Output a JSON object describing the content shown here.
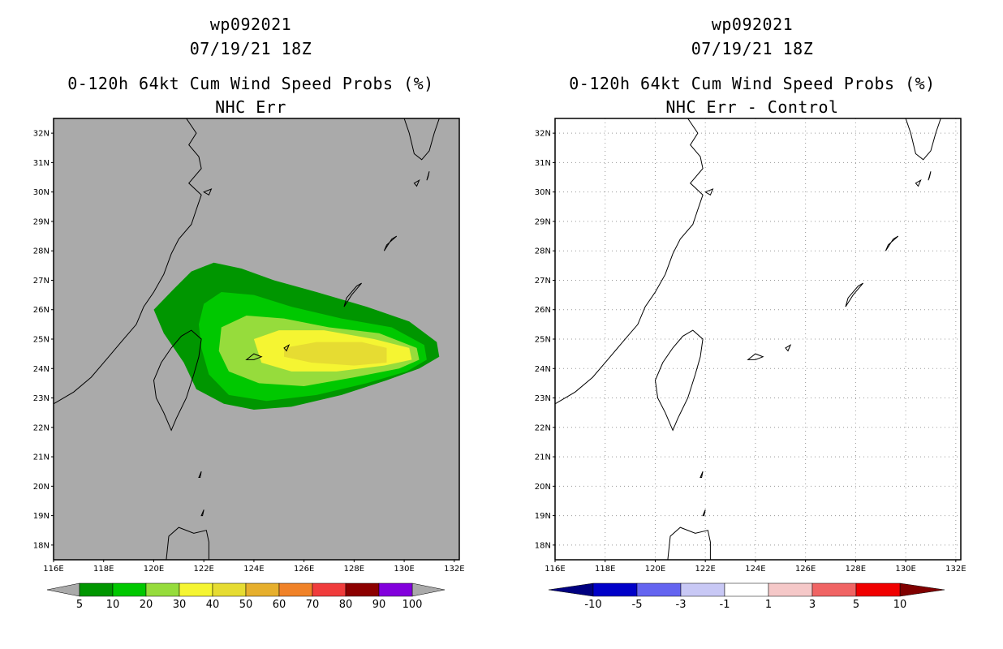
{
  "panels": {
    "left": {
      "storm_id": "wp092021",
      "datetime": "07/19/21 18Z",
      "product": "0-120h 64kt Cum Wind Speed Probs (%)",
      "subtitle": "NHC Err",
      "colorbar": {
        "labels": [
          "5",
          "10",
          "20",
          "30",
          "40",
          "50",
          "60",
          "70",
          "80",
          "90",
          "100"
        ],
        "colors": [
          "#009600",
          "#00c800",
          "#96dc3c",
          "#f5f532",
          "#e6dc32",
          "#e6af2d",
          "#f08228",
          "#f03c3c",
          "#8c0000",
          "#8200dc"
        ]
      }
    },
    "right": {
      "storm_id": "wp092021",
      "datetime": "07/19/21 18Z",
      "product": "0-120h 64kt Cum Wind Speed Probs (%)",
      "subtitle": "NHC Err - Control",
      "colorbar": {
        "labels": [
          "-10",
          "-5",
          "-3",
          "-1",
          "1",
          "3",
          "5",
          "10"
        ],
        "colors": [
          "#0000c8",
          "#6464f0",
          "#c8c8f5",
          "#ffffff",
          "#f5c8c8",
          "#f06464",
          "#f00000"
        ],
        "end_colors": [
          "#000080",
          "#800000"
        ]
      }
    }
  },
  "axes": {
    "lon_labels": [
      "116E",
      "118E",
      "120E",
      "122E",
      "124E",
      "126E",
      "128E",
      "130E",
      "132E"
    ],
    "lat_labels": [
      "32N",
      "31N",
      "30N",
      "29N",
      "28N",
      "27N",
      "26N",
      "25N",
      "24N",
      "23N",
      "22N",
      "21N",
      "20N",
      "19N",
      "18N"
    ]
  },
  "probability_contours": [
    {
      "level": 5,
      "color": "#009600"
    },
    {
      "level": 10,
      "color": "#00c800"
    },
    {
      "level": 20,
      "color": "#96dc3c"
    },
    {
      "level": 30,
      "color": "#f5f532"
    },
    {
      "level": 40,
      "color": "#e6dc32"
    }
  ],
  "style": {
    "map_background_left": "#aaaaaa",
    "map_background_right": "#ffffff"
  }
}
